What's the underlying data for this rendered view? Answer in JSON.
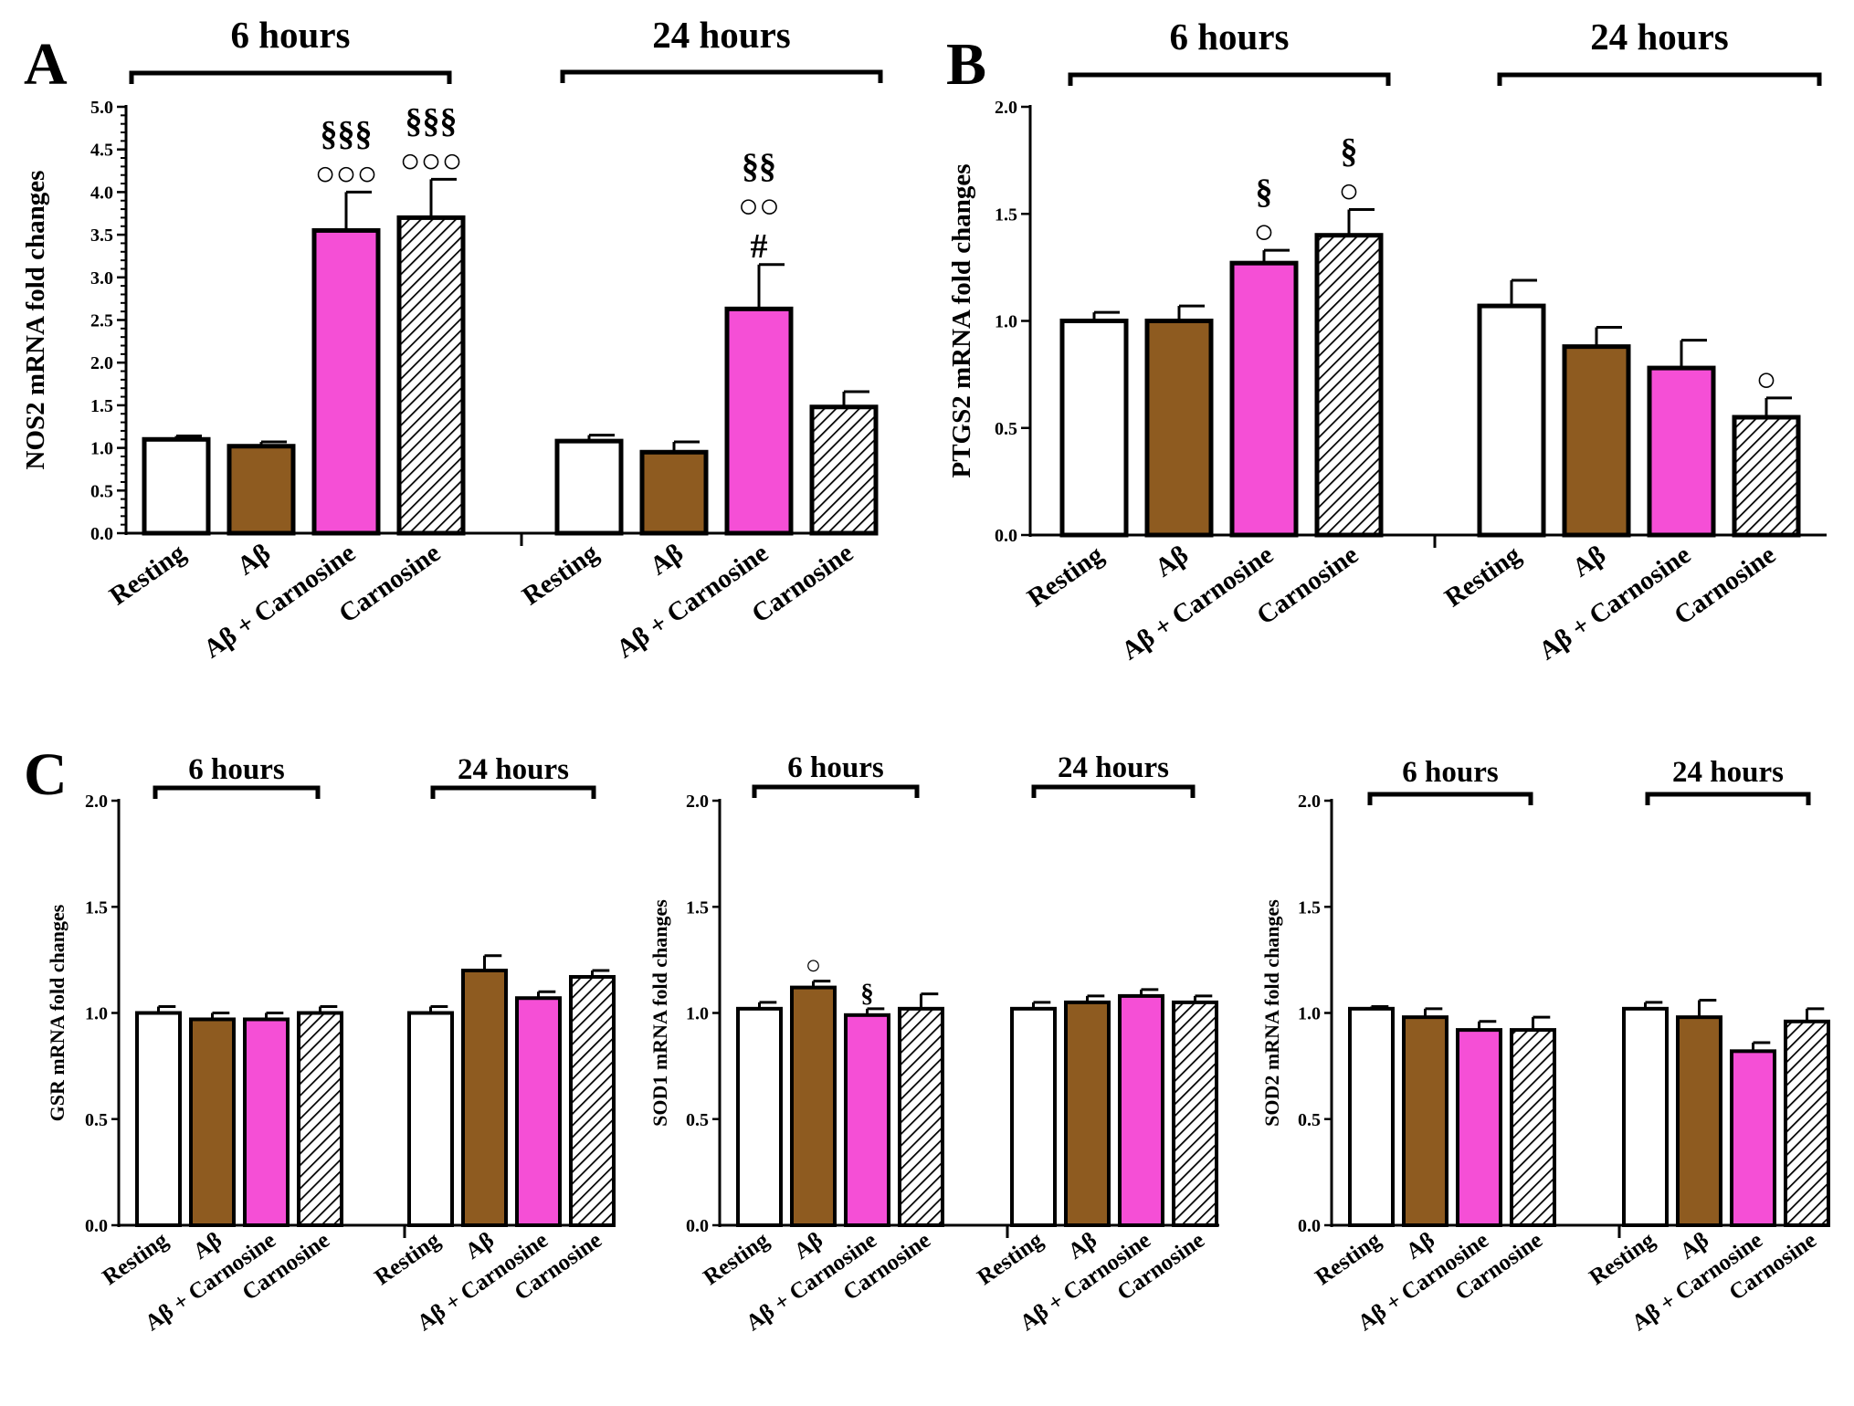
{
  "colors": {
    "resting": "#ffffff",
    "abeta": "#8e5b20",
    "abeta_carnosine": "#f54fd6",
    "carnosine_hatch": "#000000",
    "axis": "#000000"
  },
  "chart_data": [
    {
      "panel": "A",
      "type": "bar",
      "ylabel": "NOS2 mRNA fold changes",
      "ylim": [
        0,
        5.0
      ],
      "yticks": [
        "0.0",
        "0.5",
        "1.0",
        "1.5",
        "2.0",
        "2.5",
        "3.0",
        "3.5",
        "4.0",
        "4.5",
        "5.0"
      ],
      "groups": [
        "6 hours",
        "24 hours"
      ],
      "categories": [
        "Resting",
        "Aβ",
        "Aβ + Carnosine",
        "Carnosine"
      ],
      "series": [
        {
          "name": "6 hours",
          "values": [
            1.1,
            1.02,
            3.55,
            3.7
          ],
          "errors": [
            0.04,
            0.05,
            0.45,
            0.45
          ],
          "annotations": [
            "",
            "",
            "§§§\n○○○",
            "§§§\n○○○"
          ]
        },
        {
          "name": "24 hours",
          "values": [
            1.08,
            0.95,
            2.63,
            1.48
          ],
          "errors": [
            0.07,
            0.12,
            0.52,
            0.18
          ],
          "annotations": [
            "",
            "",
            "§§\n○○\n#",
            ""
          ]
        }
      ]
    },
    {
      "panel": "B",
      "type": "bar",
      "ylabel": "PTGS2 mRNA fold changes",
      "ylim": [
        0,
        2.0
      ],
      "yticks": [
        "0.0",
        "0.5",
        "1.0",
        "1.5",
        "2.0"
      ],
      "groups": [
        "6 hours",
        "24 hours"
      ],
      "categories": [
        "Resting",
        "Aβ",
        "Aβ + Carnosine",
        "Carnosine"
      ],
      "series": [
        {
          "name": "6 hours",
          "values": [
            1.0,
            1.0,
            1.27,
            1.4
          ],
          "errors": [
            0.04,
            0.07,
            0.06,
            0.12
          ],
          "annotations": [
            "",
            "",
            "§\n○",
            "§\n○"
          ]
        },
        {
          "name": "24 hours",
          "values": [
            1.07,
            0.88,
            0.78,
            0.55
          ],
          "errors": [
            0.12,
            0.09,
            0.13,
            0.09
          ],
          "annotations": [
            "",
            "",
            "",
            "○"
          ]
        }
      ]
    },
    {
      "panel": "C",
      "type": "bar",
      "ylabel": "GSR mRNA fold changes",
      "ylim": [
        0,
        2.0
      ],
      "yticks": [
        "0.0",
        "0.5",
        "1.0",
        "1.5",
        "2.0"
      ],
      "groups": [
        "6 hours",
        "24 hours"
      ],
      "categories": [
        "Resting",
        "Aβ",
        "Aβ + Carnosine",
        "Carnosine"
      ],
      "series": [
        {
          "name": "6 hours",
          "values": [
            1.0,
            0.97,
            0.97,
            1.0
          ],
          "errors": [
            0.03,
            0.03,
            0.03,
            0.03
          ],
          "annotations": [
            "",
            "",
            "",
            ""
          ]
        },
        {
          "name": "24 hours",
          "values": [
            1.0,
            1.2,
            1.07,
            1.17
          ],
          "errors": [
            0.03,
            0.07,
            0.03,
            0.03
          ],
          "annotations": [
            "",
            "",
            "",
            ""
          ]
        }
      ]
    },
    {
      "panel": "",
      "type": "bar",
      "ylabel": "SOD1 mRNA fold changes",
      "ylim": [
        0,
        2.0
      ],
      "yticks": [
        "0.0",
        "0.5",
        "1.0",
        "1.5",
        "2.0"
      ],
      "groups": [
        "6 hours",
        "24 hours"
      ],
      "categories": [
        "Resting",
        "Aβ",
        "Aβ + Carnosine",
        "Carnosine"
      ],
      "series": [
        {
          "name": "6 hours",
          "values": [
            1.02,
            1.12,
            0.99,
            1.02
          ],
          "errors": [
            0.03,
            0.03,
            0.03,
            0.07
          ],
          "annotations": [
            "",
            "○",
            "§",
            ""
          ]
        },
        {
          "name": "24 hours",
          "values": [
            1.02,
            1.05,
            1.08,
            1.05
          ],
          "errors": [
            0.03,
            0.03,
            0.03,
            0.03
          ],
          "annotations": [
            "",
            "",
            "",
            ""
          ]
        }
      ]
    },
    {
      "panel": "",
      "type": "bar",
      "ylabel": "SOD2 mRNA fold changes",
      "ylim": [
        0,
        2.0
      ],
      "yticks": [
        "0.0",
        "0.5",
        "1.0",
        "1.5",
        "2.0"
      ],
      "groups": [
        "6 hours",
        "24 hours"
      ],
      "categories": [
        "Resting",
        "Aβ",
        "Aβ + Carnosine",
        "Carnosine"
      ],
      "series": [
        {
          "name": "6 hours",
          "values": [
            1.02,
            0.98,
            0.92,
            0.92
          ],
          "errors": [
            0.01,
            0.04,
            0.04,
            0.06
          ],
          "annotations": [
            "",
            "",
            "",
            ""
          ]
        },
        {
          "name": "24 hours",
          "values": [
            1.02,
            0.98,
            0.82,
            0.96
          ],
          "errors": [
            0.03,
            0.08,
            0.04,
            0.06
          ],
          "annotations": [
            "",
            "",
            "",
            ""
          ]
        }
      ]
    }
  ]
}
